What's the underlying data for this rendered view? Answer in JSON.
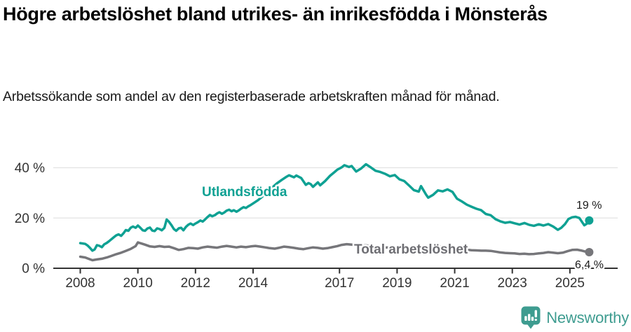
{
  "footer": {
    "brand": "Newsworthy"
  },
  "chart_data": {
    "type": "line",
    "title": "Högre arbetslöshet bland utrikes- än inrikesfödda i Mönsterås",
    "subtitle": "Arbetssökande som andel av den registerbaserade arbetskraften månad för månad.",
    "unit": "%",
    "grid": "horizontal",
    "legend_position": "inline-labels",
    "xlim": [
      2007.4,
      2026.3
    ],
    "ylim": [
      0,
      44
    ],
    "y_ticks": [
      {
        "value": 0,
        "label": "0 %"
      },
      {
        "value": 20,
        "label": "20 %"
      },
      {
        "value": 40,
        "label": "40 %"
      }
    ],
    "x_ticks": [
      {
        "year": 2008,
        "label": "2008"
      },
      {
        "year": 2010,
        "label": "2010"
      },
      {
        "year": 2012,
        "label": "2012"
      },
      {
        "year": 2014,
        "label": "2014"
      },
      {
        "year": 2017,
        "label": "2017"
      },
      {
        "year": 2019,
        "label": "2019"
      },
      {
        "year": 2021,
        "label": "2021"
      },
      {
        "year": 2023,
        "label": "2023"
      },
      {
        "year": 2025,
        "label": "2025"
      }
    ],
    "series": [
      {
        "name": "Utlandsfödda",
        "color": "#0FA193",
        "end_label": "19 %",
        "end_value": 19.0,
        "points": [
          [
            2008.0,
            10.0
          ],
          [
            2008.17,
            9.7
          ],
          [
            2008.25,
            9.1
          ],
          [
            2008.33,
            8.2
          ],
          [
            2008.42,
            7.0
          ],
          [
            2008.5,
            7.5
          ],
          [
            2008.58,
            9.2
          ],
          [
            2008.67,
            8.9
          ],
          [
            2008.75,
            8.4
          ],
          [
            2008.83,
            9.5
          ],
          [
            2008.92,
            10.1
          ],
          [
            2009.0,
            10.8
          ],
          [
            2009.17,
            12.4
          ],
          [
            2009.25,
            13.1
          ],
          [
            2009.33,
            13.5
          ],
          [
            2009.42,
            12.9
          ],
          [
            2009.5,
            13.9
          ],
          [
            2009.58,
            15.2
          ],
          [
            2009.67,
            14.9
          ],
          [
            2009.75,
            16.1
          ],
          [
            2009.83,
            16.6
          ],
          [
            2009.92,
            16.1
          ],
          [
            2010.0,
            17.0
          ],
          [
            2010.08,
            16.2
          ],
          [
            2010.17,
            15.1
          ],
          [
            2010.25,
            14.9
          ],
          [
            2010.33,
            15.8
          ],
          [
            2010.42,
            16.2
          ],
          [
            2010.5,
            15.0
          ],
          [
            2010.58,
            14.8
          ],
          [
            2010.67,
            15.9
          ],
          [
            2010.75,
            15.6
          ],
          [
            2010.83,
            15.1
          ],
          [
            2010.92,
            16.1
          ],
          [
            2011.0,
            19.4
          ],
          [
            2011.08,
            18.5
          ],
          [
            2011.17,
            17.1
          ],
          [
            2011.25,
            15.6
          ],
          [
            2011.33,
            14.9
          ],
          [
            2011.42,
            15.9
          ],
          [
            2011.5,
            16.1
          ],
          [
            2011.58,
            15.1
          ],
          [
            2011.67,
            16.5
          ],
          [
            2011.75,
            17.3
          ],
          [
            2011.83,
            17.8
          ],
          [
            2011.92,
            17.2
          ],
          [
            2012.0,
            17.8
          ],
          [
            2012.08,
            18.3
          ],
          [
            2012.17,
            19.0
          ],
          [
            2012.25,
            18.6
          ],
          [
            2012.33,
            19.4
          ],
          [
            2012.42,
            20.4
          ],
          [
            2012.5,
            21.2
          ],
          [
            2012.58,
            20.7
          ],
          [
            2012.67,
            21.1
          ],
          [
            2012.75,
            21.8
          ],
          [
            2012.83,
            22.3
          ],
          [
            2012.92,
            21.7
          ],
          [
            2013.0,
            22.2
          ],
          [
            2013.08,
            22.9
          ],
          [
            2013.17,
            23.3
          ],
          [
            2013.25,
            22.7
          ],
          [
            2013.33,
            23.1
          ],
          [
            2013.42,
            22.5
          ],
          [
            2013.5,
            23.0
          ],
          [
            2013.58,
            23.7
          ],
          [
            2013.67,
            24.3
          ],
          [
            2013.75,
            24.0
          ],
          [
            2013.83,
            24.6
          ],
          [
            2013.92,
            25.2
          ],
          [
            2014.0,
            25.8
          ],
          [
            2014.17,
            27.1
          ],
          [
            2014.33,
            28.6
          ],
          [
            2014.5,
            30.4
          ],
          [
            2014.67,
            32.2
          ],
          [
            2014.83,
            33.8
          ],
          [
            2015.0,
            35.2
          ],
          [
            2015.17,
            36.5
          ],
          [
            2015.25,
            37.0
          ],
          [
            2015.42,
            36.2
          ],
          [
            2015.5,
            36.9
          ],
          [
            2015.67,
            35.9
          ],
          [
            2015.83,
            33.2
          ],
          [
            2015.92,
            33.9
          ],
          [
            2016.0,
            33.5
          ],
          [
            2016.08,
            32.4
          ],
          [
            2016.25,
            34.2
          ],
          [
            2016.33,
            33.0
          ],
          [
            2016.5,
            34.7
          ],
          [
            2016.67,
            36.8
          ],
          [
            2016.83,
            38.3
          ],
          [
            2016.92,
            39.2
          ],
          [
            2017.08,
            40.2
          ],
          [
            2017.17,
            41.0
          ],
          [
            2017.33,
            40.3
          ],
          [
            2017.42,
            40.7
          ],
          [
            2017.58,
            38.5
          ],
          [
            2017.75,
            39.7
          ],
          [
            2017.92,
            41.4
          ],
          [
            2018.0,
            40.8
          ],
          [
            2018.08,
            40.2
          ],
          [
            2018.25,
            38.8
          ],
          [
            2018.42,
            38.3
          ],
          [
            2018.58,
            37.6
          ],
          [
            2018.75,
            36.6
          ],
          [
            2018.92,
            37.1
          ],
          [
            2019.08,
            35.4
          ],
          [
            2019.25,
            34.7
          ],
          [
            2019.42,
            32.9
          ],
          [
            2019.58,
            31.1
          ],
          [
            2019.75,
            30.5
          ],
          [
            2019.83,
            32.7
          ],
          [
            2020.0,
            29.4
          ],
          [
            2020.08,
            28.1
          ],
          [
            2020.25,
            29.2
          ],
          [
            2020.42,
            31.0
          ],
          [
            2020.58,
            30.6
          ],
          [
            2020.75,
            31.4
          ],
          [
            2020.92,
            30.4
          ],
          [
            2021.08,
            27.7
          ],
          [
            2021.25,
            26.6
          ],
          [
            2021.42,
            25.3
          ],
          [
            2021.58,
            24.5
          ],
          [
            2021.75,
            23.7
          ],
          [
            2021.92,
            23.1
          ],
          [
            2022.08,
            21.6
          ],
          [
            2022.25,
            21.1
          ],
          [
            2022.42,
            19.5
          ],
          [
            2022.58,
            18.7
          ],
          [
            2022.75,
            18.1
          ],
          [
            2022.92,
            18.4
          ],
          [
            2023.08,
            17.9
          ],
          [
            2023.25,
            17.4
          ],
          [
            2023.42,
            18.0
          ],
          [
            2023.58,
            17.3
          ],
          [
            2023.75,
            16.9
          ],
          [
            2023.92,
            17.5
          ],
          [
            2024.08,
            17.0
          ],
          [
            2024.25,
            17.6
          ],
          [
            2024.42,
            16.6
          ],
          [
            2024.58,
            15.3
          ],
          [
            2024.7,
            16.1
          ],
          [
            2024.83,
            17.6
          ],
          [
            2024.95,
            19.6
          ],
          [
            2025.08,
            20.3
          ],
          [
            2025.2,
            20.5
          ],
          [
            2025.33,
            20.0
          ],
          [
            2025.5,
            17.1
          ],
          [
            2025.58,
            17.7
          ],
          [
            2025.67,
            19.0
          ]
        ]
      },
      {
        "name": "Total arbetslöshet",
        "color": "#76767A",
        "end_label": "6,4 %",
        "end_value": 6.4,
        "points": [
          [
            2008.0,
            4.6
          ],
          [
            2008.17,
            4.3
          ],
          [
            2008.33,
            3.6
          ],
          [
            2008.42,
            3.2
          ],
          [
            2008.58,
            3.5
          ],
          [
            2008.75,
            3.8
          ],
          [
            2008.92,
            4.3
          ],
          [
            2009.08,
            4.9
          ],
          [
            2009.25,
            5.6
          ],
          [
            2009.42,
            6.2
          ],
          [
            2009.58,
            6.9
          ],
          [
            2009.75,
            7.7
          ],
          [
            2009.92,
            8.8
          ],
          [
            2010.0,
            10.3
          ],
          [
            2010.08,
            10.0
          ],
          [
            2010.25,
            9.4
          ],
          [
            2010.42,
            8.7
          ],
          [
            2010.58,
            8.5
          ],
          [
            2010.75,
            8.8
          ],
          [
            2010.92,
            8.5
          ],
          [
            2011.08,
            8.6
          ],
          [
            2011.25,
            8.0
          ],
          [
            2011.42,
            7.3
          ],
          [
            2011.58,
            7.6
          ],
          [
            2011.75,
            8.1
          ],
          [
            2011.92,
            8.0
          ],
          [
            2012.08,
            7.8
          ],
          [
            2012.25,
            8.3
          ],
          [
            2012.42,
            8.6
          ],
          [
            2012.58,
            8.4
          ],
          [
            2012.75,
            8.2
          ],
          [
            2012.92,
            8.6
          ],
          [
            2013.08,
            8.9
          ],
          [
            2013.25,
            8.6
          ],
          [
            2013.42,
            8.3
          ],
          [
            2013.58,
            8.6
          ],
          [
            2013.75,
            8.4
          ],
          [
            2013.92,
            8.7
          ],
          [
            2014.08,
            8.9
          ],
          [
            2014.25,
            8.6
          ],
          [
            2014.42,
            8.3
          ],
          [
            2014.58,
            8.0
          ],
          [
            2014.75,
            7.8
          ],
          [
            2014.92,
            8.2
          ],
          [
            2015.08,
            8.6
          ],
          [
            2015.25,
            8.4
          ],
          [
            2015.42,
            8.1
          ],
          [
            2015.58,
            7.8
          ],
          [
            2015.75,
            7.6
          ],
          [
            2015.92,
            8.0
          ],
          [
            2016.08,
            8.3
          ],
          [
            2016.25,
            8.1
          ],
          [
            2016.42,
            7.8
          ],
          [
            2016.58,
            8.0
          ],
          [
            2016.75,
            8.4
          ],
          [
            2016.92,
            8.8
          ],
          [
            2017.08,
            9.3
          ],
          [
            2017.25,
            9.6
          ],
          [
            2017.42,
            9.4
          ],
          [
            2017.58,
            9.2
          ],
          [
            2017.75,
            9.0
          ],
          [
            2017.92,
            9.1
          ],
          [
            2018.08,
            8.8
          ],
          [
            2018.25,
            8.6
          ],
          [
            2018.42,
            8.5
          ],
          [
            2018.58,
            8.3
          ],
          [
            2018.75,
            8.2
          ],
          [
            2018.92,
            8.4
          ],
          [
            2019.08,
            8.1
          ],
          [
            2019.25,
            7.9
          ],
          [
            2019.42,
            7.8
          ],
          [
            2019.58,
            7.7
          ],
          [
            2019.75,
            7.8
          ],
          [
            2019.92,
            8.0
          ],
          [
            2020.08,
            8.2
          ],
          [
            2020.25,
            8.5
          ],
          [
            2020.42,
            8.7
          ],
          [
            2020.58,
            8.5
          ],
          [
            2020.75,
            8.3
          ],
          [
            2020.92,
            8.0
          ],
          [
            2021.08,
            7.8
          ],
          [
            2021.25,
            7.6
          ],
          [
            2021.42,
            7.4
          ],
          [
            2021.58,
            7.2
          ],
          [
            2021.75,
            7.1
          ],
          [
            2021.92,
            7.0
          ],
          [
            2022.08,
            7.0
          ],
          [
            2022.25,
            6.9
          ],
          [
            2022.42,
            6.6
          ],
          [
            2022.58,
            6.3
          ],
          [
            2022.75,
            6.1
          ],
          [
            2022.92,
            6.0
          ],
          [
            2023.08,
            5.9
          ],
          [
            2023.25,
            5.7
          ],
          [
            2023.42,
            5.8
          ],
          [
            2023.58,
            5.6
          ],
          [
            2023.75,
            5.7
          ],
          [
            2023.92,
            5.9
          ],
          [
            2024.08,
            6.1
          ],
          [
            2024.25,
            6.4
          ],
          [
            2024.42,
            6.2
          ],
          [
            2024.58,
            6.0
          ],
          [
            2024.75,
            6.2
          ],
          [
            2024.92,
            6.8
          ],
          [
            2025.08,
            7.3
          ],
          [
            2025.25,
            7.4
          ],
          [
            2025.42,
            7.0
          ],
          [
            2025.55,
            6.6
          ],
          [
            2025.67,
            6.4
          ]
        ]
      }
    ]
  }
}
